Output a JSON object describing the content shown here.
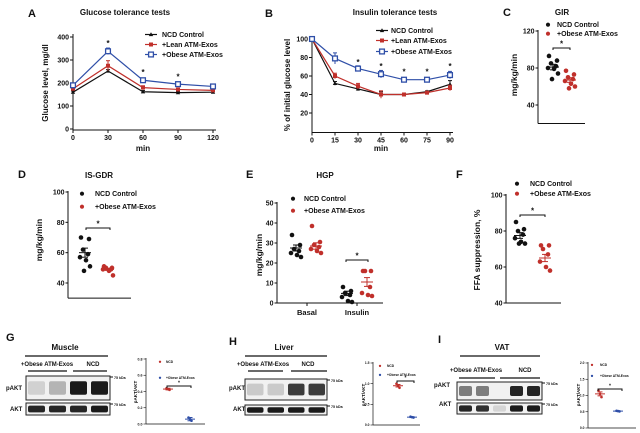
{
  "colors": {
    "ncd": "#111111",
    "lean": "#c0302b",
    "obese": "#2f4fa8",
    "obese_dot": "#c0302b",
    "small_ncd": "#c0302b",
    "small_obese": "#2f4fa8"
  },
  "chart_data": [
    {
      "panel": "A",
      "type": "line",
      "title": "Glucose tolerance tests",
      "xlabel": "min",
      "ylabel": "Glucose level, mg/dl",
      "x": [
        0,
        30,
        60,
        90,
        120
      ],
      "xlim": [
        0,
        120
      ],
      "ylim": [
        0,
        400
      ],
      "yticks": [
        0,
        100,
        200,
        300,
        400
      ],
      "legend": "top-right",
      "grid": false,
      "series": [
        {
          "name": "NCD Control",
          "color": "#111111",
          "marker": "triangle",
          "values": [
            160,
            252,
            162,
            158,
            160
          ],
          "err": [
            5,
            6,
            5,
            4,
            4
          ]
        },
        {
          "name": "+Lean ATM-Exos",
          "color": "#c0302b",
          "marker": "square-filled",
          "values": [
            175,
            275,
            180,
            172,
            168
          ],
          "err": [
            6,
            22,
            8,
            6,
            5
          ]
        },
        {
          "name": "+Obese ATM-Exos",
          "color": "#2f4fa8",
          "marker": "square-open",
          "values": [
            190,
            338,
            212,
            195,
            185
          ],
          "err": [
            6,
            14,
            8,
            10,
            7
          ]
        }
      ],
      "significance": [
        {
          "x": 30,
          "y": 375,
          "label": "*"
        },
        {
          "x": 60,
          "y": 248,
          "label": "*"
        },
        {
          "x": 90,
          "y": 228,
          "label": "*"
        }
      ]
    },
    {
      "panel": "B",
      "type": "line",
      "title": "Insulin tolerance tests",
      "xlabel": "min",
      "ylabel": "% of initial glucose level",
      "x": [
        0,
        15,
        30,
        45,
        60,
        75,
        90
      ],
      "xlim": [
        0,
        90
      ],
      "ylim": [
        0,
        100
      ],
      "yticks": [
        20,
        40,
        60,
        80,
        100
      ],
      "legend": "top-right",
      "grid": false,
      "series": [
        {
          "name": "NCD Control",
          "color": "#111111",
          "marker": "triangle",
          "values": [
            100,
            52,
            46,
            40,
            40,
            43,
            51
          ],
          "err": [
            0,
            2,
            2,
            3,
            1,
            1,
            4
          ]
        },
        {
          "name": "+Lean ATM-Exos",
          "color": "#c0302b",
          "marker": "square-filled",
          "values": [
            100,
            60,
            49,
            40,
            40,
            42,
            47
          ],
          "err": [
            0,
            3,
            3,
            4,
            1,
            1,
            3
          ]
        },
        {
          "name": "+Obese ATM-Exos",
          "color": "#2f4fa8",
          "marker": "square-open",
          "values": [
            100,
            79,
            68,
            62,
            56,
            56,
            61
          ],
          "err": [
            0,
            6,
            3,
            4,
            2,
            2,
            4
          ]
        }
      ],
      "significance": [
        {
          "x": 30,
          "y": 75,
          "label": "*"
        },
        {
          "x": 45,
          "y": 71,
          "label": "*"
        },
        {
          "x": 60,
          "y": 65,
          "label": "*"
        },
        {
          "x": 75,
          "y": 65,
          "label": "*"
        },
        {
          "x": 90,
          "y": 71,
          "label": "*"
        }
      ]
    },
    {
      "panel": "C",
      "type": "scatter",
      "title": "GIR",
      "ylabel": "mg/kg/min",
      "ylim": [
        20,
        120
      ],
      "yticks": [
        40,
        80,
        120
      ],
      "legend": "top",
      "groups": [
        {
          "name": "NCD Control",
          "color": "#111111",
          "values": [
            93,
            88,
            85,
            82,
            80,
            79,
            74,
            68
          ],
          "mean": 81,
          "sem": 3
        },
        {
          "name": "+Obese ATM-Exos",
          "color": "#c0302b",
          "values": [
            77,
            73,
            70,
            68,
            66,
            63,
            60,
            58
          ],
          "mean": 67,
          "sem": 2.5
        }
      ],
      "significance": "*"
    },
    {
      "panel": "D",
      "type": "scatter",
      "title": "IS-GDR",
      "ylabel": "mg/kg/min",
      "ylim": [
        30,
        100
      ],
      "yticks": [
        40,
        60,
        80,
        100
      ],
      "legend": "top-right",
      "groups": [
        {
          "name": "NCD Control",
          "color": "#111111",
          "values": [
            70,
            69,
            62,
            59,
            57,
            55,
            51,
            48
          ],
          "mean": 60,
          "sem": 3
        },
        {
          "name": "+Obese ATM-Exos",
          "color": "#c0302b",
          "values": [
            51,
            50,
            50,
            49,
            49,
            48,
            45
          ],
          "mean": 49,
          "sem": 0.7
        }
      ],
      "significance": "*"
    },
    {
      "panel": "E",
      "type": "scatter",
      "title": "HGP",
      "ylabel": "mg/kg/min",
      "ylim": [
        0,
        50
      ],
      "yticks": [
        0,
        10,
        20,
        30,
        40,
        50
      ],
      "categories": [
        "Basal",
        "Insulin"
      ],
      "legend": "top",
      "groups": [
        {
          "name": "NCD Control",
          "color": "#111111",
          "category": "Basal",
          "values": [
            34,
            29,
            27,
            26,
            25,
            24,
            23
          ],
          "mean": 27.5,
          "sem": 1.5
        },
        {
          "name": "+Obese ATM-Exos",
          "color": "#c0302b",
          "category": "Basal",
          "values": [
            38.5,
            30.5,
            29,
            28,
            27,
            26,
            25
          ],
          "mean": 28.5,
          "sem": 1.6
        },
        {
          "name": "NCD Control",
          "color": "#111111",
          "category": "Insulin",
          "values": [
            8,
            6,
            5,
            4,
            3,
            1,
            0.5
          ],
          "mean": 4.8,
          "sem": 1.1
        },
        {
          "name": "+Obese ATM-Exos",
          "color": "#c0302b",
          "category": "Insulin",
          "values": [
            16,
            16,
            16,
            8,
            5,
            4,
            3.5
          ],
          "mean": 10.5,
          "sem": 2.2
        }
      ],
      "significance": "*"
    },
    {
      "panel": "F",
      "type": "scatter",
      "title": "",
      "ylabel": "FFA suppression, %",
      "ylim": [
        40,
        100
      ],
      "yticks": [
        40,
        60,
        80,
        100
      ],
      "legend": "top",
      "groups": [
        {
          "name": "NCD Control",
          "color": "#111111",
          "values": [
            85,
            81,
            80,
            78,
            76,
            74,
            73,
            73
          ],
          "mean": 77.5,
          "sem": 1.6
        },
        {
          "name": "+Obese ATM-Exos",
          "color": "#c0302b",
          "values": [
            72,
            72,
            70,
            67,
            63,
            60,
            58
          ],
          "mean": 65,
          "sem": 2
        }
      ],
      "significance": "*"
    },
    {
      "panel": "G",
      "type": "scatter",
      "blot": {
        "title": "Muscle",
        "groups": [
          "+Obese ATM-Exos",
          "NCD"
        ],
        "rows": [
          "pAKT",
          "AKT"
        ],
        "marker": "75 kDa",
        "pakt_intensity": [
          0.12,
          0.25,
          0.95,
          0.95
        ],
        "akt_intensity": [
          0.9,
          0.9,
          0.9,
          0.95
        ]
      },
      "ylabel": "pAKT/AKT",
      "ylim": [
        0,
        0.8
      ],
      "yticks": [
        "0.0",
        "0.2",
        "0.4",
        "0.6",
        "0.8"
      ],
      "groups": [
        {
          "name": "NCD",
          "color": "#c0302b",
          "values": [
            0.44,
            0.43,
            0.42
          ],
          "mean": 0.43,
          "sem": 0.01
        },
        {
          "name": "+Obese ATM-Exos",
          "color": "#2f4fa8",
          "values": [
            0.08,
            0.06,
            0.04
          ],
          "mean": 0.06,
          "sem": 0.02
        }
      ],
      "significance": "*"
    },
    {
      "panel": "H",
      "type": "scatter",
      "blot": {
        "title": "Liver",
        "groups": [
          "+Obese ATM-Exos",
          "NCD"
        ],
        "rows": [
          "pAKT",
          "AKT"
        ],
        "marker": "75 kDa",
        "pakt_intensity": [
          0.15,
          0.15,
          0.8,
          0.8
        ],
        "akt_intensity": [
          0.95,
          0.95,
          0.95,
          0.95
        ]
      },
      "ylabel": "pAKT/AKT",
      "ylim": [
        0,
        1.5
      ],
      "yticks": [
        "0.0",
        "0.5",
        "1.0",
        "1.5"
      ],
      "groups": [
        {
          "name": "NCD",
          "color": "#c0302b",
          "values": [
            1.0,
            0.95,
            0.9
          ],
          "mean": 0.95,
          "sem": 0.03
        },
        {
          "name": "+Obese ATM-Exos",
          "color": "#2f4fa8",
          "values": [
            0.2,
            0.19,
            0.18
          ],
          "mean": 0.19,
          "sem": 0.01
        }
      ],
      "significance": "*"
    },
    {
      "panel": "I",
      "type": "scatter",
      "blot": {
        "title": "VAT",
        "groups": [
          "+Obese ATM-Exos",
          "NCD"
        ],
        "rows": [
          "pAKT",
          "AKT"
        ],
        "marker": "75 kDa",
        "pakt_intensity": [
          0.5,
          0.5,
          0,
          0.9,
          0.9
        ],
        "akt_intensity": [
          0.9,
          0.85,
          0.1,
          0.95,
          0.95
        ]
      },
      "ylabel": "pAKT/AKT",
      "ylim": [
        0,
        2.0
      ],
      "yticks": [
        "0.0",
        "0.5",
        "1.0",
        "1.5",
        "2.0"
      ],
      "groups": [
        {
          "name": "NCD",
          "color": "#c0302b",
          "values": [
            1.15,
            1.05,
            0.95
          ],
          "mean": 1.05,
          "sem": 0.06
        },
        {
          "name": "+Obese ATM-Exos",
          "color": "#2f4fa8",
          "values": [
            0.53,
            0.52,
            0.51
          ],
          "mean": 0.52,
          "sem": 0.01
        }
      ],
      "significance": "*"
    }
  ]
}
